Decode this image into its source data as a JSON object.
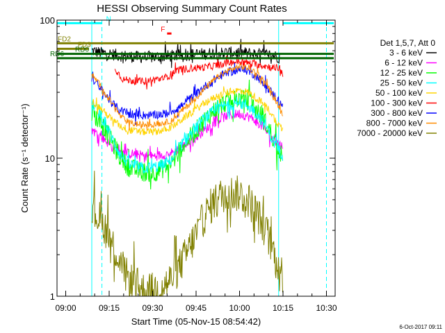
{
  "chart_data": {
    "type": "line",
    "title": "HESSI Observing Summary Count Rates",
    "xlabel": "Start Time (05-Nov-15 08:54:42)",
    "ylabel": "Count Rate (s⁻¹ detector⁻¹)",
    "footer": "6-Oct-2017 09:11",
    "legend_title": "Det 1,5,7, Att 0",
    "legend_position": "right",
    "grid": false,
    "yscale": "log",
    "ylim": [
      1,
      100
    ],
    "y_ticks": [
      {
        "value": 1,
        "label": "1"
      },
      {
        "value": 10,
        "label": "10"
      },
      {
        "value": 100,
        "label": "100"
      }
    ],
    "xlim_minutes": [
      -3,
      93
    ],
    "x_ticks": [
      {
        "t": 0,
        "label": "09:00"
      },
      {
        "t": 15,
        "label": "09:15"
      },
      {
        "t": 30,
        "label": "09:30"
      },
      {
        "t": 45,
        "label": "09:45"
      },
      {
        "t": 60,
        "label": "10:00"
      },
      {
        "t": 75,
        "label": "10:15"
      },
      {
        "t": 90,
        "label": "10:30"
      }
    ],
    "series": [
      {
        "name": "3 - 6 keV",
        "color": "#000000",
        "noise": 0.1,
        "points": [
          [
            9,
            60
          ],
          [
            12,
            58
          ],
          [
            15,
            57
          ],
          [
            20,
            55
          ],
          [
            25,
            54
          ],
          [
            30,
            54
          ],
          [
            36,
            55
          ],
          [
            42,
            56
          ],
          [
            48,
            57
          ],
          [
            54,
            58
          ],
          [
            60,
            58
          ],
          [
            66,
            57
          ],
          [
            70,
            56
          ],
          [
            72,
            55
          ],
          [
            74,
            54
          ]
        ]
      },
      {
        "name": "6 - 12 keV",
        "color": "#ff00ff",
        "noise": 0.08,
        "points": [
          [
            9,
            16
          ],
          [
            11,
            15
          ],
          [
            13,
            14
          ],
          [
            16,
            12
          ],
          [
            19,
            11
          ],
          [
            22,
            10.8
          ],
          [
            26,
            10.5
          ],
          [
            30,
            10.3
          ],
          [
            34,
            10.6
          ],
          [
            37,
            11
          ],
          [
            40,
            12
          ],
          [
            44,
            13.5
          ],
          [
            48,
            16
          ],
          [
            52,
            18.5
          ],
          [
            56,
            20.5
          ],
          [
            60,
            21
          ],
          [
            63,
            20
          ],
          [
            66,
            18.5
          ],
          [
            69,
            16
          ],
          [
            71,
            14
          ],
          [
            73,
            13
          ],
          [
            75,
            12
          ]
        ]
      },
      {
        "name": "12 - 25 keV",
        "color": "#00ff00",
        "noise": 0.16,
        "points": [
          [
            9,
            22
          ],
          [
            11,
            19
          ],
          [
            13,
            17
          ],
          [
            16,
            13
          ],
          [
            19,
            10
          ],
          [
            22,
            8.5
          ],
          [
            26,
            8
          ],
          [
            30,
            7.8
          ],
          [
            34,
            8.5
          ],
          [
            37,
            9.5
          ],
          [
            40,
            12
          ],
          [
            44,
            15
          ],
          [
            48,
            19
          ],
          [
            52,
            23
          ],
          [
            56,
            26
          ],
          [
            60,
            27
          ],
          [
            63,
            26
          ],
          [
            66,
            22
          ],
          [
            69,
            18
          ],
          [
            71,
            15
          ],
          [
            73,
            12
          ],
          [
            75,
            10
          ]
        ]
      },
      {
        "name": "25 - 50 keV",
        "color": "#00ffff",
        "noise": 0.1,
        "points": [
          [
            9,
            25
          ],
          [
            11,
            22
          ],
          [
            13,
            19
          ],
          [
            16,
            14
          ],
          [
            19,
            10.5
          ],
          [
            22,
            9
          ],
          [
            26,
            8.5
          ],
          [
            30,
            8.5
          ],
          [
            34,
            9
          ],
          [
            37,
            10
          ],
          [
            40,
            12.5
          ],
          [
            44,
            16
          ],
          [
            48,
            19.5
          ],
          [
            52,
            22.5
          ],
          [
            56,
            24.5
          ],
          [
            60,
            25
          ],
          [
            63,
            24
          ],
          [
            66,
            21
          ],
          [
            69,
            17.5
          ],
          [
            71,
            14
          ],
          [
            73,
            12
          ],
          [
            75,
            10.5
          ]
        ]
      },
      {
        "name": "50 - 100 keV",
        "color": "#ffd400",
        "noise": 0.06,
        "points": [
          [
            9,
            26
          ],
          [
            11,
            24
          ],
          [
            13,
            22
          ],
          [
            16,
            19
          ],
          [
            19,
            17
          ],
          [
            22,
            16
          ],
          [
            26,
            15.5
          ],
          [
            30,
            15.5
          ],
          [
            34,
            16
          ],
          [
            37,
            17
          ],
          [
            40,
            19
          ],
          [
            44,
            22
          ],
          [
            48,
            25
          ],
          [
            52,
            28
          ],
          [
            56,
            30
          ],
          [
            60,
            31
          ],
          [
            63,
            30
          ],
          [
            66,
            27
          ],
          [
            69,
            24
          ],
          [
            71,
            21
          ],
          [
            73,
            18
          ],
          [
            75,
            16
          ]
        ]
      },
      {
        "name": "100 - 300 keV",
        "color": "#ff0000",
        "noise": 0.06,
        "points": [
          [
            17,
            45
          ],
          [
            19,
            39
          ],
          [
            20,
            37
          ],
          [
            26,
            36
          ],
          [
            31,
            37
          ],
          [
            34,
            38
          ],
          [
            36,
            40
          ],
          [
            38,
            43
          ],
          [
            40,
            44
          ],
          [
            44,
            45
          ],
          [
            48,
            45.5
          ],
          [
            52,
            47
          ],
          [
            56,
            49
          ],
          [
            60,
            50
          ],
          [
            63,
            49
          ],
          [
            66,
            47.5
          ],
          [
            69,
            46.5
          ],
          [
            72,
            45
          ],
          [
            74,
            45
          ],
          [
            75,
            40
          ]
        ]
      },
      {
        "name": "300 - 800 keV",
        "color": "#0000ff",
        "noise": 0.07,
        "points": [
          [
            9,
            38
          ],
          [
            11,
            34
          ],
          [
            13,
            30
          ],
          [
            16,
            25
          ],
          [
            19,
            22
          ],
          [
            22,
            21
          ],
          [
            26,
            20.5
          ],
          [
            30,
            20.5
          ],
          [
            34,
            21
          ],
          [
            37,
            22
          ],
          [
            40,
            24
          ],
          [
            44,
            28
          ],
          [
            48,
            33
          ],
          [
            52,
            38
          ],
          [
            56,
            42
          ],
          [
            60,
            44
          ],
          [
            63,
            43
          ],
          [
            66,
            39
          ],
          [
            69,
            34
          ],
          [
            71,
            30
          ],
          [
            73,
            27
          ],
          [
            75,
            24
          ]
        ]
      },
      {
        "name": "800 - 7000 keV",
        "color": "#ff8c00",
        "noise": 0.05,
        "points": [
          [
            9,
            40
          ],
          [
            11,
            36
          ],
          [
            13,
            31
          ],
          [
            16,
            25
          ],
          [
            19,
            20
          ],
          [
            22,
            18
          ],
          [
            26,
            17.5
          ],
          [
            30,
            17.5
          ],
          [
            34,
            18
          ],
          [
            37,
            19
          ],
          [
            40,
            22
          ],
          [
            44,
            26
          ],
          [
            48,
            32
          ],
          [
            52,
            38
          ],
          [
            56,
            43
          ],
          [
            60,
            46
          ],
          [
            63,
            45
          ],
          [
            66,
            41
          ],
          [
            69,
            35
          ],
          [
            71,
            30
          ],
          [
            73,
            25
          ],
          [
            75,
            21
          ]
        ]
      },
      {
        "name": "7000 - 20000 keV",
        "color": "#808000",
        "noise": 0.3,
        "points": [
          [
            9,
            4.2
          ],
          [
            11,
            3.8
          ],
          [
            13,
            3.3
          ],
          [
            15,
            2.7
          ],
          [
            17,
            2.2
          ],
          [
            19,
            1.7
          ],
          [
            21,
            1.4
          ],
          [
            24,
            1.2
          ],
          [
            27,
            1.1
          ],
          [
            30,
            1.1
          ],
          [
            33,
            1.15
          ],
          [
            36,
            1.3
          ],
          [
            39,
            1.6
          ],
          [
            42,
            2.1
          ],
          [
            45,
            2.8
          ],
          [
            48,
            3.8
          ],
          [
            51,
            4.8
          ],
          [
            54,
            5.4
          ],
          [
            57,
            5.6
          ],
          [
            60,
            5.5
          ],
          [
            63,
            5.0
          ],
          [
            66,
            4.0
          ],
          [
            69,
            3.0
          ],
          [
            71,
            2.3
          ],
          [
            73,
            1.8
          ],
          [
            75,
            1.4
          ]
        ]
      }
    ],
    "status_flags": [
      {
        "name": "N",
        "color": "#00ffff",
        "level": 95,
        "spans": [
          [
            -3,
            12.5
          ],
          [
            75,
            93
          ]
        ]
      },
      {
        "name": "F",
        "color": "#ff0000",
        "level": 80,
        "spans": [
          [
            35,
            36.5
          ]
        ]
      },
      {
        "name": "FD2",
        "color": "#808000",
        "level": 68,
        "spans": [
          [
            -3,
            93
          ]
        ]
      },
      {
        "name": "FD3",
        "color": "#808000",
        "level": 62,
        "spans": [
          [
            -3,
            8
          ]
        ]
      },
      {
        "name": "RD0",
        "color": "#006400",
        "level": 57,
        "spans": [
          [
            -3,
            93
          ]
        ]
      },
      {
        "name": "RD6",
        "color": "#006400",
        "level": 53,
        "spans": [
          [
            -3,
            93
          ]
        ]
      }
    ],
    "vertical_markers": [
      {
        "t": 9,
        "color": "#00ffff",
        "style": "solid"
      },
      {
        "t": 12.5,
        "color": "#00ffff",
        "style": "dashed"
      },
      {
        "t": 73.5,
        "color": "#00ffff",
        "style": "solid"
      },
      {
        "t": 90,
        "color": "#00ffff",
        "style": "dashed"
      }
    ]
  }
}
